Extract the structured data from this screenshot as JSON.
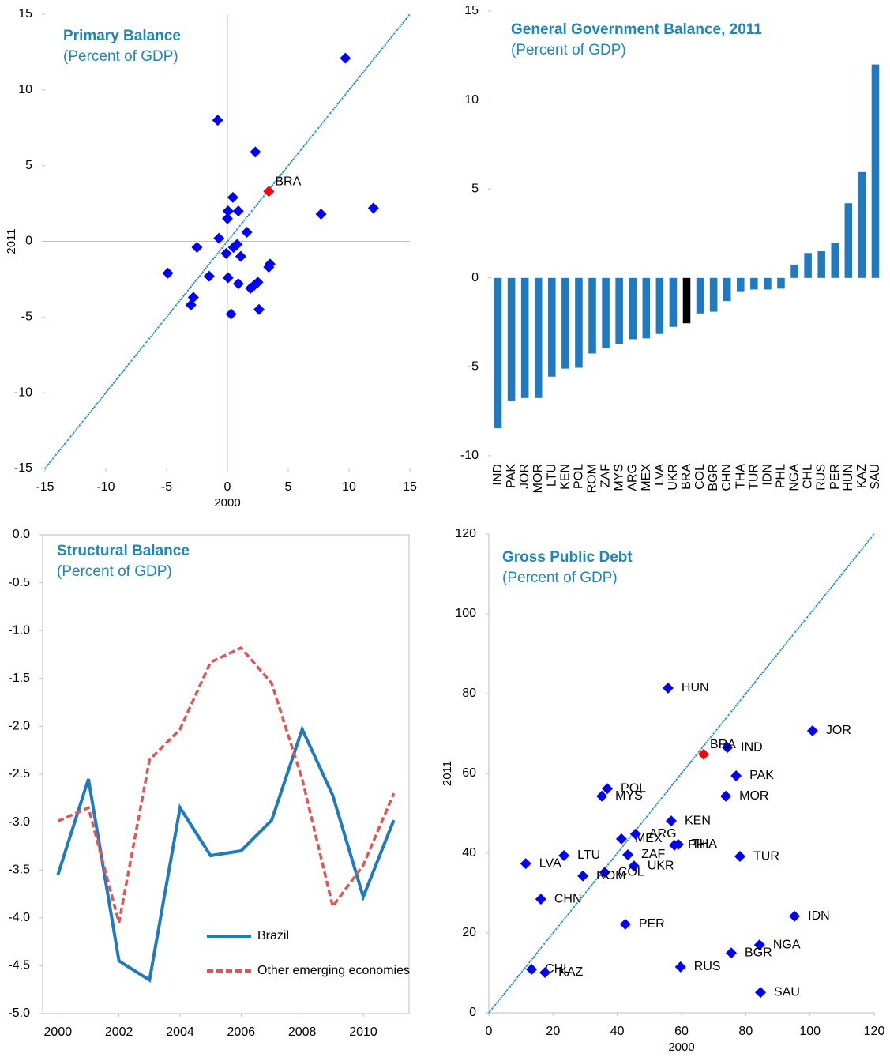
{
  "chart_data": [
    {
      "type": "scatter",
      "title": "Primary Balance",
      "subtitle": "(Percent of GDP)",
      "x_label": "2000",
      "y_label": "2011",
      "xlim": [
        -15,
        15
      ],
      "ylim": [
        -15,
        15
      ],
      "xticks": [
        -15,
        -10,
        -5,
        0,
        5,
        10,
        15
      ],
      "yticks": [
        -15,
        -10,
        -5,
        0,
        5,
        10,
        15
      ],
      "zero_lines": true,
      "diagonal": true,
      "diagonal_color": "#2a8bc4",
      "series": [
        {
          "color": "#0000ff",
          "x": [
            9.7,
            -0.8,
            2.3,
            0.45,
            0.05,
            0.9,
            0,
            7.7,
            12.0,
            1.6,
            -0.7,
            0.8,
            -2.5,
            0.5,
            -0.1,
            1.1,
            3.5,
            3.4,
            -4.9,
            -1.5,
            0.05,
            2.5,
            0.9,
            2.2,
            1.9,
            -2.8,
            -3.0,
            2.6,
            0.3
          ],
          "values": [
            12.1,
            8.0,
            5.9,
            2.9,
            2.0,
            2.0,
            1.5,
            1.8,
            2.2,
            0.6,
            0.2,
            -0.2,
            -0.4,
            -0.4,
            -0.8,
            -1.0,
            -1.5,
            -1.7,
            -2.1,
            -2.3,
            -2.4,
            -2.7,
            -2.8,
            -2.9,
            -3.1,
            -3.7,
            -4.2,
            -4.5,
            -4.8
          ]
        },
        {
          "color": "#ff0000",
          "x": [
            3.4
          ],
          "values": [
            3.3
          ],
          "labels": [
            "BRA"
          ]
        }
      ]
    },
    {
      "type": "bar",
      "title": "General Government  Balance, 2011",
      "subtitle": "(Percent of GDP)",
      "ylim": [
        -10,
        15
      ],
      "yticks": [
        -10,
        -5,
        0,
        5,
        10,
        15
      ],
      "categories": [
        "IND",
        "PAK",
        "JOR",
        "MOR",
        "LTU",
        "KEN",
        "POL",
        "ROM",
        "ZAF",
        "MYS",
        "ARG",
        "MEX",
        "LVA",
        "UKR",
        "BRA",
        "COL",
        "BGR",
        "CHN",
        "THA",
        "TUR",
        "IDN",
        "PHL",
        "NGA",
        "CHL",
        "RUS",
        "PER",
        "HUN",
        "KAZ",
        "SAU"
      ],
      "values": [
        -8.45,
        -6.9,
        -6.75,
        -6.75,
        -5.55,
        -5.1,
        -5.05,
        -4.25,
        -3.95,
        -3.7,
        -3.45,
        -3.4,
        -3.15,
        -2.75,
        -2.55,
        -2.0,
        -1.9,
        -1.3,
        -0.75,
        -0.65,
        -0.65,
        -0.6,
        0.75,
        1.4,
        1.5,
        1.95,
        4.2,
        5.95,
        12.0
      ],
      "colors": [
        "#1f7ac0",
        "#1f7ac0",
        "#1f7ac0",
        "#1f7ac0",
        "#1f7ac0",
        "#1f7ac0",
        "#1f7ac0",
        "#1f7ac0",
        "#1f7ac0",
        "#1f7ac0",
        "#1f7ac0",
        "#1f7ac0",
        "#1f7ac0",
        "#1f7ac0",
        "#000000",
        "#1f7ac0",
        "#1f7ac0",
        "#1f7ac0",
        "#1f7ac0",
        "#1f7ac0",
        "#1f7ac0",
        "#1f7ac0",
        "#1f7ac0",
        "#1f7ac0",
        "#1f7ac0",
        "#1f7ac0",
        "#1f7ac0",
        "#1f7ac0",
        "#1f7ac0"
      ]
    },
    {
      "type": "line",
      "title": "Structural  Balance",
      "subtitle": "(Percent of GDP)",
      "x": [
        2000,
        2001,
        2002,
        2003,
        2004,
        2005,
        2006,
        2007,
        2008,
        2009,
        2010,
        2011
      ],
      "xlim": [
        1999.5,
        2011.5
      ],
      "xticks": [
        2000,
        2002,
        2004,
        2006,
        2008,
        2010
      ],
      "ylim": [
        -5,
        0
      ],
      "yticks": [
        {
          "value": 0,
          "label": "0.0"
        },
        -0.5,
        {
          "value": -1,
          "label": "-1.0"
        },
        -1.5,
        {
          "value": -2,
          "label": "-2.0"
        },
        -2.5,
        {
          "value": -3,
          "label": "-3.0"
        },
        -3.5,
        {
          "value": -4,
          "label": "-4.0"
        },
        -4.5,
        {
          "value": -5,
          "label": "-5.0"
        }
      ],
      "legend": "lower right",
      "series": [
        {
          "name": "Brazil",
          "color": "#1f7ac0",
          "dashed": false,
          "values": [
            -3.55,
            -2.55,
            -4.45,
            -4.65,
            -2.85,
            -3.35,
            -3.3,
            -2.98,
            -2.03,
            -2.72,
            -3.78,
            -2.98
          ]
        },
        {
          "name": "Other emerging economies",
          "color": "#e05555",
          "dashed": true,
          "values": [
            -2.99,
            -2.85,
            -4.05,
            -2.35,
            -2.03,
            -1.33,
            -1.18,
            -1.55,
            -2.55,
            -3.88,
            -3.45,
            -2.7
          ]
        }
      ]
    },
    {
      "type": "scatter",
      "title": "Gross Public Debt",
      "subtitle": "(Percent of GDP)",
      "x_label": "2000",
      "y_label": "2011",
      "xlim": [
        0,
        120
      ],
      "ylim": [
        0,
        120
      ],
      "xticks": [
        0,
        20,
        40,
        60,
        80,
        100,
        120
      ],
      "yticks": [
        0,
        20,
        40,
        60,
        80,
        100,
        120
      ],
      "zero_lines": false,
      "diagonal": true,
      "diagonal_color": "#2a8bc4",
      "series": [
        {
          "color": "#0000ff",
          "labels": [
            "HUN",
            "JOR",
            "IND",
            "PAK",
            "POL",
            "MYS",
            "MOR",
            "KEN",
            "MEX",
            "ARG",
            "THA",
            "PHL",
            "LTU",
            "ZAF",
            "TUR",
            "LVA",
            "UKR",
            "COL",
            "ROM",
            "CHN",
            "IDN",
            "PER",
            "NGA",
            "BGR",
            "RUS",
            "CHL",
            "KAZ",
            "SAU"
          ],
          "x": [
            55.8,
            100.8,
            74.3,
            77.0,
            36.9,
            35.2,
            73.8,
            56.8,
            41.3,
            45.7,
            59.0,
            57.8,
            23.4,
            43.3,
            78.2,
            11.5,
            45.2,
            36.1,
            29.3,
            16.2,
            95.2,
            42.5,
            84.3,
            75.5,
            59.7,
            13.3,
            17.5,
            84.6
          ],
          "values": [
            81.4,
            70.7,
            66.5,
            59.4,
            56.2,
            54.3,
            54.3,
            48.1,
            43.6,
            44.8,
            42.2,
            42.0,
            39.4,
            39.6,
            39.2,
            37.4,
            36.8,
            35.2,
            34.3,
            28.5,
            24.2,
            22.2,
            17.0,
            15.0,
            11.5,
            10.9,
            10.1,
            5.1
          ]
        },
        {
          "color": "#ff0000",
          "x": [
            66.9
          ],
          "values": [
            64.8
          ],
          "labels": [
            "BRA"
          ]
        }
      ]
    }
  ]
}
